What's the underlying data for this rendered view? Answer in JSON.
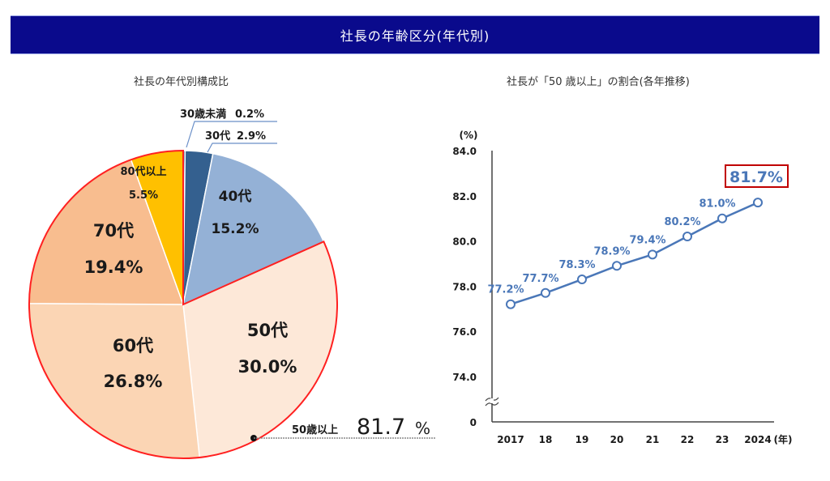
{
  "header": {
    "title": "社長の年齢区分(年代別)"
  },
  "chart_data": [
    {
      "type": "pie",
      "title": "社長の年代別構成比",
      "slices": [
        {
          "label": "30歳未満",
          "value": 0.2,
          "value_text": "0.2%",
          "color": "#2e5a8e"
        },
        {
          "label": "30代",
          "value": 2.9,
          "value_text": "2.9%",
          "color": "#34608f"
        },
        {
          "label": "40代",
          "value": 15.2,
          "value_text": "15.2%",
          "color": "#94b1d6"
        },
        {
          "label": "50代",
          "value": 30.0,
          "value_text": "30.0%",
          "color": "#fde8d8"
        },
        {
          "label": "60代",
          "value": 26.8,
          "value_text": "26.8%",
          "color": "#fbd5b4"
        },
        {
          "label": "70代",
          "value": 19.4,
          "value_text": "19.4%",
          "color": "#f8bd8f"
        },
        {
          "label": "80代以上",
          "value": 5.5,
          "value_text": "5.5%",
          "color": "#ffc000"
        }
      ],
      "highlight": {
        "label": "50歳以上",
        "value": "81.7",
        "unit": "%",
        "outline_color": "#ff2020"
      }
    },
    {
      "type": "line",
      "title": "社長が「50 歳以上」の割合(各年推移)",
      "ylabel": "(%)",
      "xlabel": "(年)",
      "categories": [
        "2017",
        "18",
        "19",
        "20",
        "21",
        "22",
        "23",
        "2024"
      ],
      "series": [
        {
          "name": "50歳以上",
          "values": [
            77.2,
            77.7,
            78.3,
            78.9,
            79.4,
            80.2,
            81.0,
            81.7
          ],
          "labels": [
            "77.2%",
            "77.7%",
            "78.3%",
            "78.9%",
            "79.4%",
            "80.2%",
            "81.0%",
            "81.7%"
          ],
          "color": "#4a77b8"
        }
      ],
      "yticks": [
        "84.0",
        "82.0",
        "80.0",
        "78.0",
        "76.0",
        "74.0",
        "0"
      ],
      "ylim": [
        74,
        84
      ],
      "axis_break": true,
      "highlight_color": "#c00000"
    }
  ]
}
